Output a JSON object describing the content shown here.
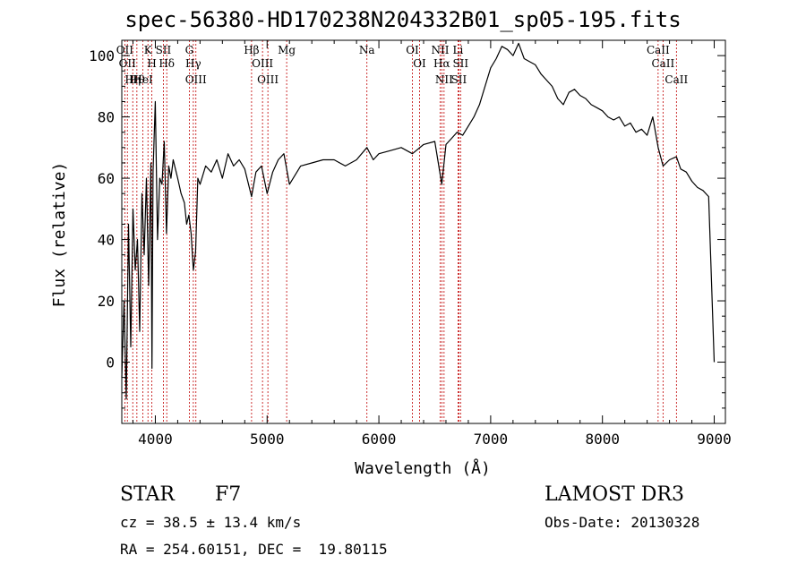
{
  "chart_data": {
    "type": "line",
    "title": "spec-56380-HD170238N204332B01_sp05-195.fits",
    "xlabel": "Wavelength (Å)",
    "ylabel": "Flux (relative)",
    "xlim": [
      3700,
      9100
    ],
    "ylim": [
      -20,
      105
    ],
    "xticks": [
      4000,
      5000,
      6000,
      7000,
      8000,
      9000
    ],
    "xtick_labels": [
      "4000",
      "5000",
      "6000",
      "7000",
      "8000",
      "9000"
    ],
    "yticks": [
      0,
      20,
      40,
      60,
      80,
      100
    ],
    "ytick_labels": [
      "0",
      "20",
      "40",
      "60",
      "80",
      "100"
    ],
    "series": [
      {
        "name": "spectrum",
        "x": [
          3700,
          3720,
          3740,
          3760,
          3780,
          3800,
          3820,
          3840,
          3860,
          3880,
          3900,
          3920,
          3940,
          3960,
          3970,
          3980,
          4000,
          4020,
          4040,
          4060,
          4080,
          4100,
          4120,
          4140,
          4160,
          4180,
          4200,
          4230,
          4260,
          4280,
          4300,
          4320,
          4340,
          4360,
          4380,
          4400,
          4450,
          4500,
          4550,
          4600,
          4650,
          4700,
          4750,
          4800,
          4861,
          4900,
          4950,
          5000,
          5050,
          5100,
          5150,
          5200,
          5300,
          5400,
          5500,
          5600,
          5700,
          5800,
          5893,
          5950,
          6000,
          6100,
          6200,
          6300,
          6400,
          6500,
          6563,
          6600,
          6650,
          6700,
          6750,
          6800,
          6850,
          6900,
          6950,
          7000,
          7050,
          7100,
          7150,
          7200,
          7250,
          7300,
          7350,
          7400,
          7450,
          7500,
          7550,
          7600,
          7650,
          7700,
          7750,
          7800,
          7850,
          7900,
          7950,
          8000,
          8050,
          8100,
          8150,
          8200,
          8250,
          8300,
          8350,
          8400,
          8450,
          8498,
          8542,
          8600,
          8662,
          8700,
          8750,
          8800,
          8850,
          8900,
          8950,
          9000
        ],
        "y": [
          -5,
          20,
          -12,
          45,
          5,
          50,
          30,
          40,
          10,
          55,
          35,
          60,
          25,
          65,
          -2,
          62,
          85,
          40,
          60,
          58,
          72,
          42,
          64,
          60,
          66,
          63,
          60,
          55,
          52,
          45,
          48,
          42,
          30,
          36,
          60,
          58,
          64,
          62,
          66,
          60,
          68,
          64,
          66,
          63,
          54,
          62,
          64,
          55,
          62,
          66,
          68,
          58,
          64,
          65,
          66,
          66,
          64,
          66,
          70,
          66,
          68,
          69,
          70,
          68,
          71,
          72,
          58,
          71,
          73,
          75,
          74,
          77,
          80,
          84,
          90,
          96,
          99,
          103,
          102,
          100,
          104,
          99,
          98,
          97,
          94,
          92,
          90,
          86,
          84,
          88,
          89,
          87,
          86,
          84,
          83,
          82,
          80,
          79,
          80,
          77,
          78,
          75,
          76,
          74,
          80,
          70,
          64,
          66,
          67,
          63,
          62,
          59,
          57,
          56,
          54,
          0
        ]
      }
    ],
    "line_marks": [
      {
        "wl": 3727,
        "label": "OII"
      },
      {
        "wl": 3750,
        "label": "OII"
      },
      {
        "wl": 3798,
        "label": "Hη"
      },
      {
        "wl": 3835,
        "label": "Hθ"
      },
      {
        "wl": 3889,
        "label": "HeI"
      },
      {
        "wl": 3934,
        "label": "K"
      },
      {
        "wl": 3969,
        "label": "H"
      },
      {
        "wl": 4072,
        "label": "SII"
      },
      {
        "wl": 4102,
        "label": "Hδ"
      },
      {
        "wl": 4304,
        "label": "G"
      },
      {
        "wl": 4340,
        "label": "Hγ"
      },
      {
        "wl": 4363,
        "label": "OIII"
      },
      {
        "wl": 4861,
        "label": "Hβ"
      },
      {
        "wl": 4959,
        "label": "OIII"
      },
      {
        "wl": 5007,
        "label": "OIII"
      },
      {
        "wl": 5175,
        "label": "Mg"
      },
      {
        "wl": 5893,
        "label": "Na"
      },
      {
        "wl": 6300,
        "label": "OI"
      },
      {
        "wl": 6364,
        "label": "OI"
      },
      {
        "wl": 6548,
        "label": "NII"
      },
      {
        "wl": 6563,
        "label": "Hα"
      },
      {
        "wl": 6583,
        "label": "NII"
      },
      {
        "wl": 6708,
        "label": "Li"
      },
      {
        "wl": 6716,
        "label": "SII"
      },
      {
        "wl": 6731,
        "label": "SII"
      },
      {
        "wl": 8498,
        "label": "CaII"
      },
      {
        "wl": 8542,
        "label": "CaII"
      },
      {
        "wl": 8662,
        "label": "CaII"
      }
    ]
  },
  "info": {
    "class_label": "STAR",
    "subclass": "F7",
    "survey": "LAMOST DR3",
    "redshift": "cz = 38.5 ± 13.4 km/s",
    "obs_date": "Obs-Date: 20130328",
    "coords": "RA = 254.60151, DEC =  19.80115"
  },
  "colors": {
    "spectrum": "#000000",
    "line_marker": "#c00000",
    "axes": "#000000"
  }
}
